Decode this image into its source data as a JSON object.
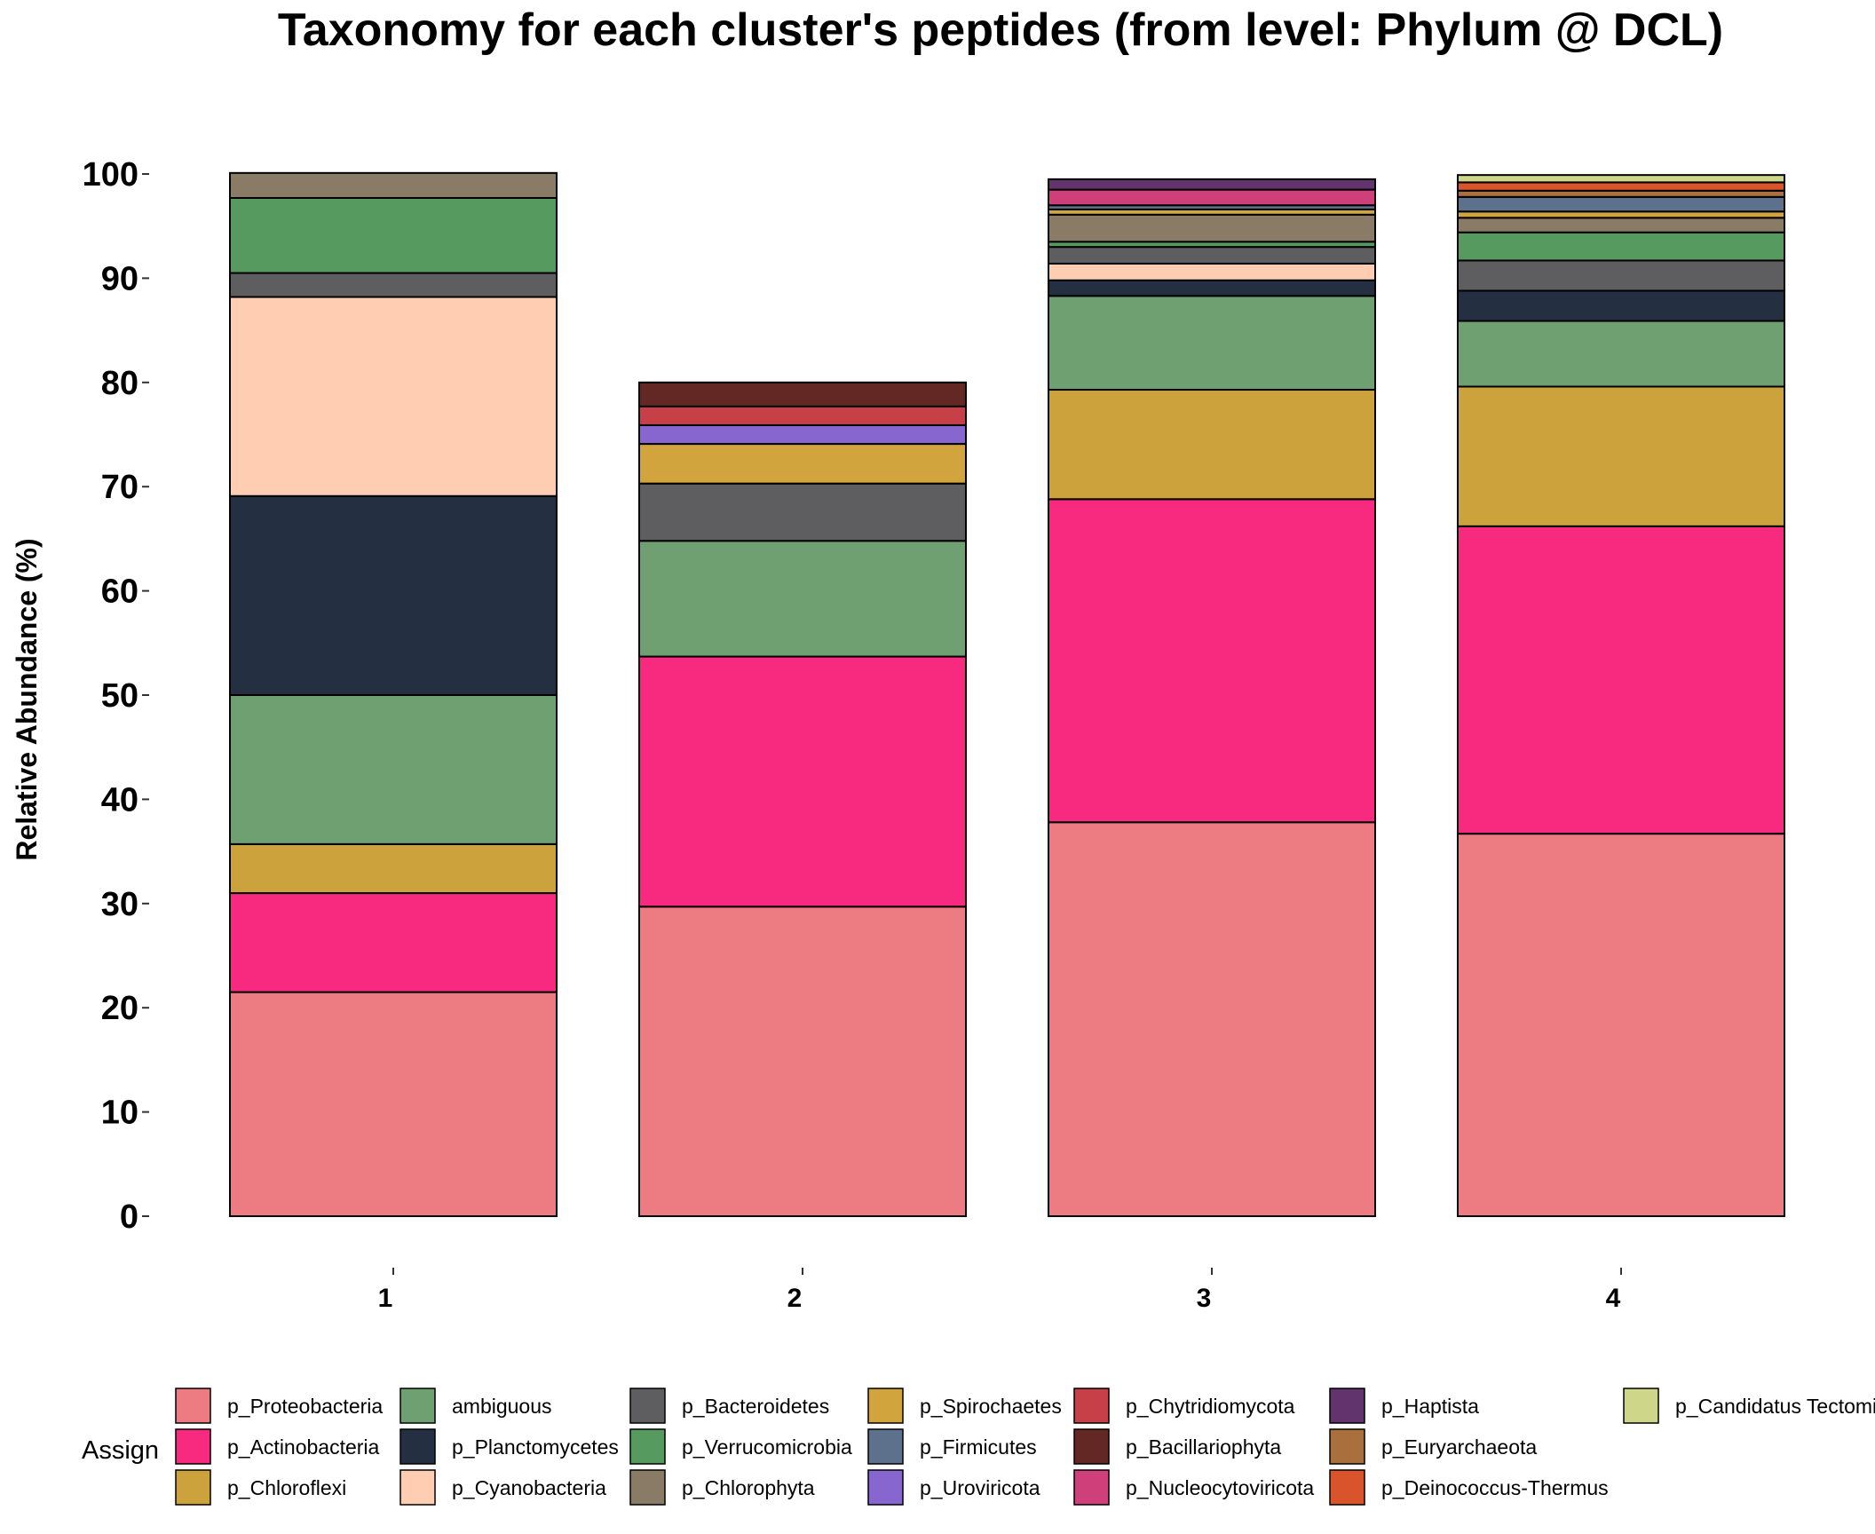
{
  "chart_data": {
    "type": "bar",
    "stacked": true,
    "title": "Taxonomy for each cluster's peptides (from level: Phylum @ DCL)",
    "xlabel": "",
    "ylabel": "Relative Abundance (%)",
    "ylim": [
      0,
      100
    ],
    "yticks": [
      0,
      10,
      20,
      30,
      40,
      50,
      60,
      70,
      80,
      90,
      100
    ],
    "categories": [
      "1",
      "2",
      "3",
      "4"
    ],
    "grid": false,
    "legend": {
      "title": "Assign",
      "position": "bottom",
      "items": [
        {
          "name": "p_Proteobacteria",
          "color": "#EC7B82"
        },
        {
          "name": "p_Actinobacteria",
          "color": "#F72A80"
        },
        {
          "name": "p_Chloroflexi",
          "color": "#CCA23D"
        },
        {
          "name": "ambiguous",
          "color": "#6EA072"
        },
        {
          "name": "p_Planctomycetes",
          "color": "#243042"
        },
        {
          "name": "p_Cyanobacteria",
          "color": "#FFCDB2"
        },
        {
          "name": "p_Bacteroidetes",
          "color": "#5E5E60"
        },
        {
          "name": "p_Verrucomicrobia",
          "color": "#579A60"
        },
        {
          "name": "p_Chlorophyta",
          "color": "#8A7B66"
        },
        {
          "name": "p_Spirochaetes",
          "color": "#D2A43D"
        },
        {
          "name": "p_Firmicutes",
          "color": "#5D718D"
        },
        {
          "name": "p_Uroviricota",
          "color": "#8766D0"
        },
        {
          "name": "p_Chytridiomycota",
          "color": "#C74048"
        },
        {
          "name": "p_Bacillariophyta",
          "color": "#632824"
        },
        {
          "name": "p_Nucleocytoviricota",
          "color": "#CF3F7A"
        },
        {
          "name": "p_Haptista",
          "color": "#63336D"
        },
        {
          "name": "p_Euryarchaeota",
          "color": "#A9703E"
        },
        {
          "name": "p_Deinococcus-Thermus",
          "color": "#D9542A"
        },
        {
          "name": "p_Candidatus Tectomi",
          "color": "#CED789"
        }
      ]
    },
    "series": [
      {
        "name": "p_Proteobacteria",
        "values": [
          21.5,
          29.7,
          37.8,
          36.7
        ]
      },
      {
        "name": "p_Actinobacteria",
        "values": [
          9.5,
          24.0,
          31.0,
          29.5
        ]
      },
      {
        "name": "p_Chloroflexi",
        "values": [
          4.7,
          0,
          10.5,
          13.4
        ]
      },
      {
        "name": "ambiguous",
        "values": [
          14.3,
          11.1,
          9.0,
          6.3
        ]
      },
      {
        "name": "p_Planctomycetes",
        "values": [
          19.1,
          0,
          1.5,
          2.9
        ]
      },
      {
        "name": "p_Cyanobacteria",
        "values": [
          19.1,
          0,
          1.6,
          0
        ]
      },
      {
        "name": "p_Bacteroidetes",
        "values": [
          2.3,
          5.5,
          1.6,
          2.9
        ]
      },
      {
        "name": "p_Verrucomicrobia",
        "values": [
          7.2,
          0,
          0.5,
          2.7
        ]
      },
      {
        "name": "p_Chlorophyta",
        "values": [
          2.4,
          0,
          2.6,
          1.4
        ]
      },
      {
        "name": "p_Spirochaetes",
        "values": [
          0,
          3.8,
          0.5,
          0.6
        ]
      },
      {
        "name": "p_Firmicutes",
        "values": [
          0,
          0,
          0.4,
          1.4
        ]
      },
      {
        "name": "p_Uroviricota",
        "values": [
          0,
          1.8,
          0,
          0
        ]
      },
      {
        "name": "p_Chytridiomycota",
        "values": [
          0,
          1.8,
          0,
          0
        ]
      },
      {
        "name": "p_Bacillariophyta",
        "values": [
          0,
          2.3,
          0,
          0
        ]
      },
      {
        "name": "p_Nucleocytoviricota",
        "values": [
          0,
          0,
          1.5,
          0
        ]
      },
      {
        "name": "p_Haptista",
        "values": [
          0,
          0,
          1.0,
          0
        ]
      },
      {
        "name": "p_Euryarchaeota",
        "values": [
          0,
          0,
          0,
          0.6
        ]
      },
      {
        "name": "p_Deinococcus-Thermus",
        "values": [
          0,
          0,
          0,
          0.8
        ]
      },
      {
        "name": "p_Candidatus Tectomi",
        "values": [
          0,
          0,
          0,
          0.7
        ]
      }
    ]
  }
}
